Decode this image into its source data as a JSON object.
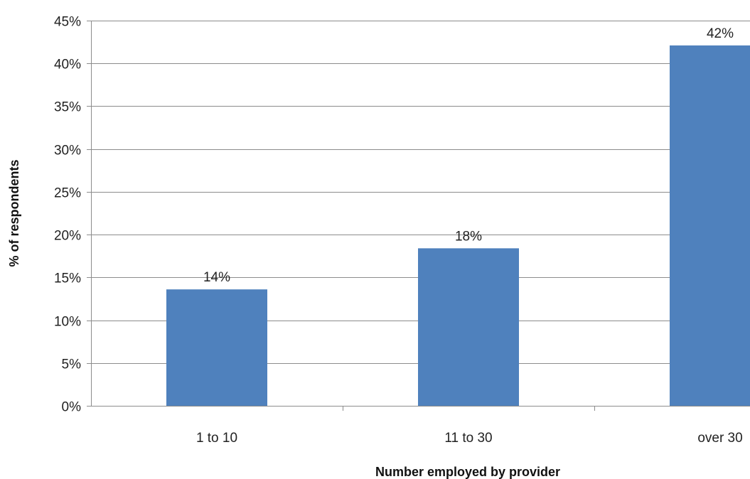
{
  "chart_data": {
    "type": "bar",
    "categories": [
      "1 to 10",
      "11 to 30",
      "over 30"
    ],
    "values": [
      13.6,
      18.4,
      42.1
    ],
    "data_labels": [
      "14%",
      "18%",
      "42%"
    ],
    "xlabel": "Number employed by provider",
    "ylabel": "% of respondents",
    "ylim": [
      0,
      45
    ],
    "yticks": [
      0,
      5,
      10,
      15,
      20,
      25,
      30,
      35,
      40,
      45
    ],
    "ytick_labels": [
      "0%",
      "5%",
      "10%",
      "15%",
      "20%",
      "25%",
      "30%",
      "35%",
      "40%",
      "45%"
    ],
    "grid": true,
    "legend": "none",
    "bar_color": "#4f81bd"
  }
}
